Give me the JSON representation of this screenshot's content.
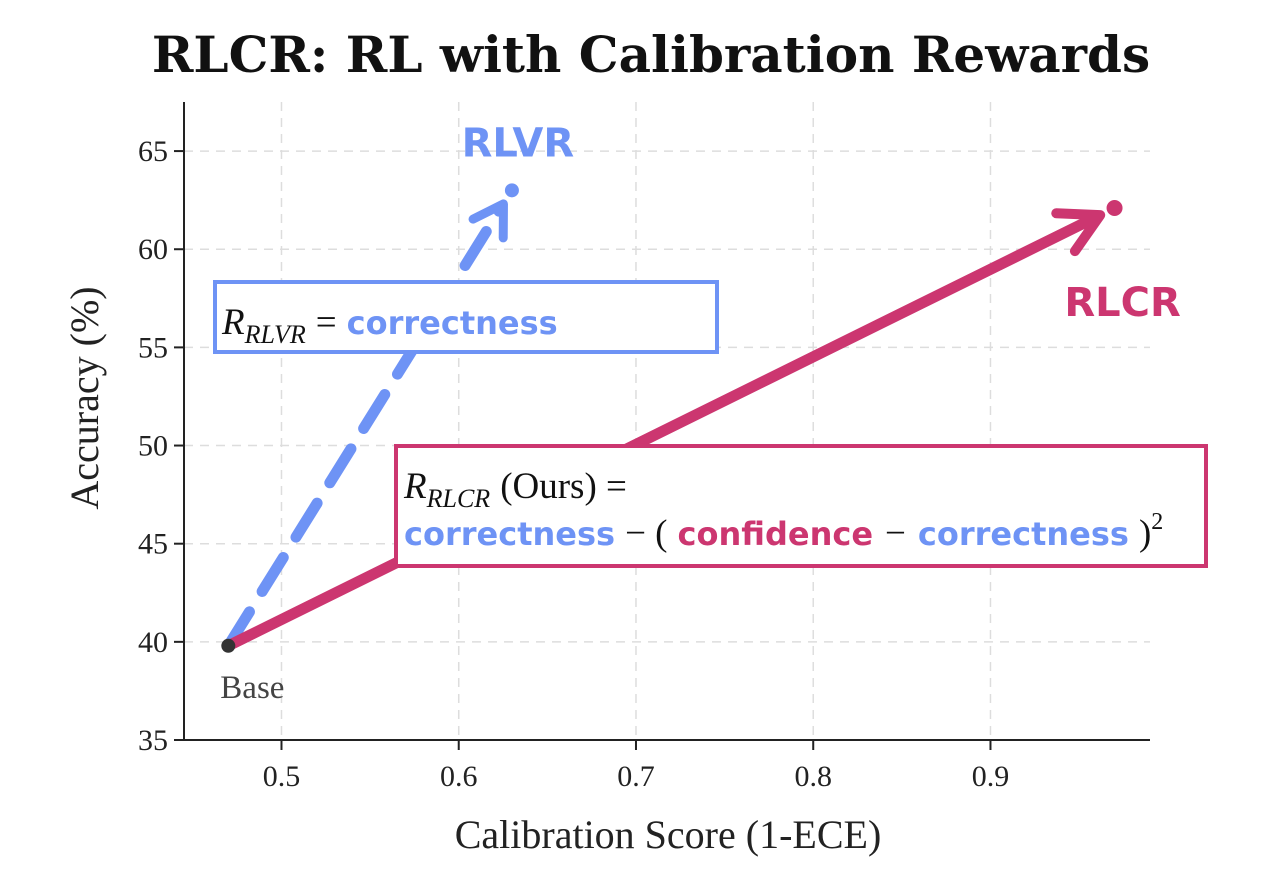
{
  "colors": {
    "rlvr": "#6e93f5",
    "rlcr": "#cc3670",
    "text": "#111111",
    "base_point": "#333333"
  },
  "chart_data": {
    "type": "scatter",
    "title": "RLCR: RL with Calibration Rewards",
    "xlabel": "Calibration Score (1-ECE)",
    "ylabel": "Accuracy (%)",
    "xlim": [
      0.445,
      0.99
    ],
    "ylim": [
      35,
      67.5
    ],
    "xticks": [
      0.5,
      0.6,
      0.7,
      0.8,
      0.9
    ],
    "xtick_labels": [
      "0.5",
      "0.6",
      "0.7",
      "0.8",
      "0.9"
    ],
    "yticks": [
      35,
      40,
      45,
      50,
      55,
      60,
      65
    ],
    "ytick_labels": [
      "35",
      "40",
      "45",
      "50",
      "55",
      "60",
      "65"
    ],
    "grid": true,
    "points": [
      {
        "id": "base",
        "label": "Base",
        "x": 0.47,
        "y": 39.8
      },
      {
        "id": "rlvr",
        "label": "RLVR",
        "x": 0.63,
        "y": 63.0
      },
      {
        "id": "rlcr",
        "label": "RLCR",
        "x": 0.97,
        "y": 62.1
      }
    ],
    "arrows": [
      {
        "id": "rlvr",
        "from": "base",
        "to": "rlvr",
        "style": "dashed"
      },
      {
        "id": "rlcr",
        "from": "base",
        "to": "rlcr",
        "style": "solid"
      }
    ],
    "annotations": {
      "rlvr_box": {
        "r": "R",
        "sub": "RLVR",
        "equals": "=",
        "term": "correctness"
      },
      "rlcr_box": {
        "r": "R",
        "sub": "RLCR",
        "ours": "(Ours) =",
        "term1": "correctness",
        "minus1": "− (",
        "term2": "confidence",
        "minus2": "−",
        "term3": "correctness",
        "close": ")",
        "exponent": "2"
      }
    }
  }
}
